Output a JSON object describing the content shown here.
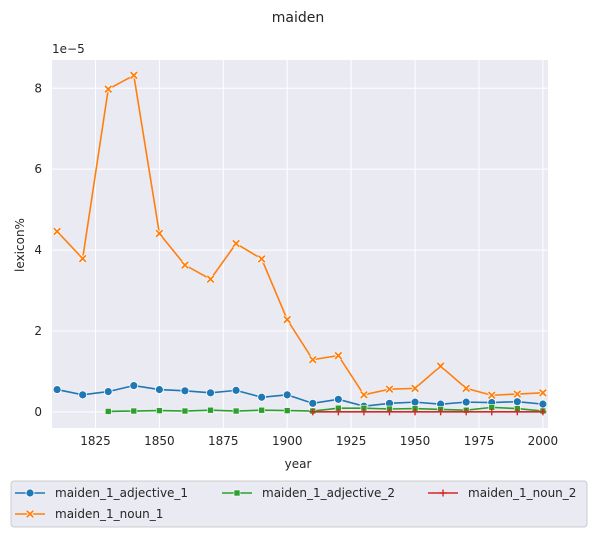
{
  "chart_data": {
    "type": "line",
    "title": "maiden",
    "xlabel": "year",
    "ylabel": "lexicon%",
    "y_offset_label": "1e−5",
    "xlim": [
      1808,
      2002
    ],
    "ylim": [
      -0.4,
      8.7
    ],
    "x_ticks": [
      1825,
      1850,
      1875,
      1900,
      1925,
      1950,
      1975,
      2000
    ],
    "y_ticks": [
      0,
      2,
      4,
      6,
      8
    ],
    "grid": true,
    "legend_position": "bottom",
    "series": [
      {
        "name": "maiden_1_adjective_1",
        "color": "#1f77b4",
        "marker": "circle",
        "x": [
          1810,
          1820,
          1830,
          1840,
          1850,
          1860,
          1870,
          1880,
          1890,
          1900,
          1910,
          1920,
          1930,
          1940,
          1950,
          1960,
          1970,
          1980,
          1990,
          2000
        ],
        "y": [
          0.55,
          0.42,
          0.5,
          0.65,
          0.55,
          0.52,
          0.47,
          0.53,
          0.36,
          0.42,
          0.21,
          0.31,
          0.14,
          0.21,
          0.24,
          0.19,
          0.24,
          0.23,
          0.25,
          0.19
        ]
      },
      {
        "name": "maiden_1_noun_1",
        "color": "#ff7f0e",
        "marker": "x",
        "x": [
          1810,
          1820,
          1830,
          1840,
          1850,
          1860,
          1870,
          1880,
          1890,
          1900,
          1910,
          1920,
          1930,
          1940,
          1950,
          1960,
          1970,
          1980,
          1990,
          2000
        ],
        "y": [
          4.46,
          3.79,
          7.98,
          8.32,
          4.41,
          3.63,
          3.28,
          4.16,
          3.78,
          2.28,
          1.29,
          1.39,
          0.42,
          0.56,
          0.58,
          1.13,
          0.58,
          0.41,
          0.44,
          0.47
        ]
      },
      {
        "name": "maiden_1_adjective_2",
        "color": "#2ca02c",
        "marker": "square",
        "x": [
          1830,
          1840,
          1850,
          1860,
          1870,
          1880,
          1890,
          1900,
          1910,
          1920,
          1930,
          1940,
          1950,
          1960,
          1970,
          1980,
          1990,
          2000
        ],
        "y": [
          0.01,
          0.02,
          0.03,
          0.02,
          0.04,
          0.02,
          0.04,
          0.03,
          0.02,
          0.09,
          0.09,
          0.07,
          0.08,
          0.06,
          0.04,
          0.11,
          0.08,
          0.02
        ]
      },
      {
        "name": "maiden_1_noun_2",
        "color": "#d62728",
        "marker": "plus",
        "x": [
          1910,
          1920,
          1930,
          1940,
          1950,
          1960,
          1970,
          1980,
          1990,
          2000
        ],
        "y": [
          0.0,
          0.0,
          0.0,
          0.0,
          0.0,
          0.0,
          0.0,
          0.0,
          0.0,
          0.0
        ]
      }
    ],
    "legend_order": [
      0,
      2,
      3,
      1
    ]
  }
}
